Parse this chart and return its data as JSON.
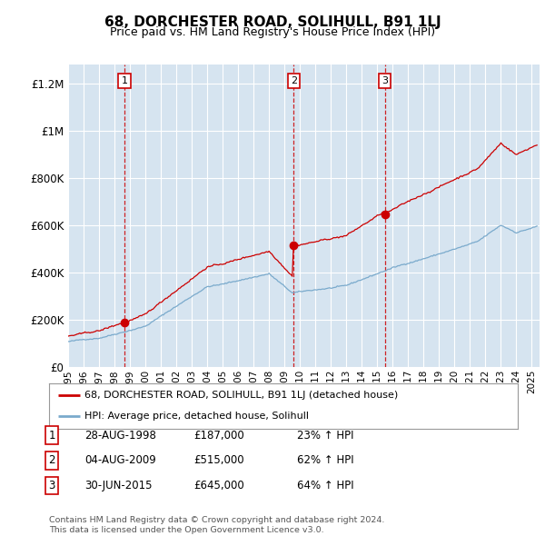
{
  "title": "68, DORCHESTER ROAD, SOLIHULL, B91 1LJ",
  "subtitle": "Price paid vs. HM Land Registry's House Price Index (HPI)",
  "red_label": "68, DORCHESTER ROAD, SOLIHULL, B91 1LJ (detached house)",
  "blue_label": "HPI: Average price, detached house, Solihull",
  "transactions": [
    {
      "num": 1,
      "date": "28-AUG-1998",
      "price": 187000,
      "pct": "23% ↑ HPI",
      "year_x": 1998.65
    },
    {
      "num": 2,
      "date": "04-AUG-2009",
      "price": 515000,
      "pct": "62% ↑ HPI",
      "year_x": 2009.6
    },
    {
      "num": 3,
      "date": "30-JUN-2015",
      "price": 645000,
      "pct": "64% ↑ HPI",
      "year_x": 2015.5
    }
  ],
  "vline_years": [
    1998.65,
    2009.6,
    2015.5
  ],
  "footnote1": "Contains HM Land Registry data © Crown copyright and database right 2024.",
  "footnote2": "This data is licensed under the Open Government Licence v3.0.",
  "ylim": [
    0,
    1280000
  ],
  "xlim_start": 1995.0,
  "xlim_end": 2025.5,
  "background_color": "#ffffff",
  "plot_bg_color": "#d6e4f0",
  "red_color": "#cc0000",
  "blue_color": "#7aaacc",
  "grid_color": "#ffffff",
  "vline_color": "#cc0000",
  "title_fontsize": 11,
  "subtitle_fontsize": 9
}
